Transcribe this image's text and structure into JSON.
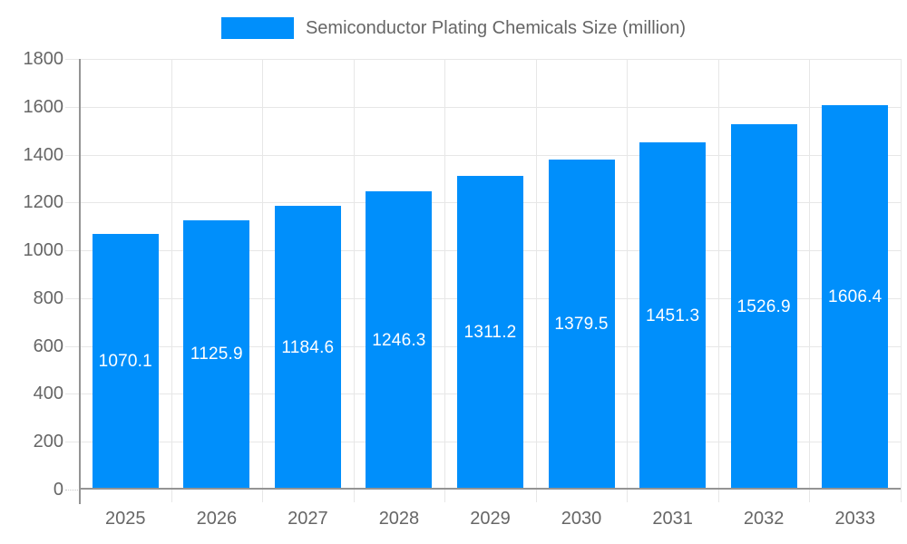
{
  "legend": {
    "label": "Semiconductor Plating Chemicals Size (million)",
    "swatch_color": "#008FFB"
  },
  "chart_data": {
    "type": "bar",
    "title": "Semiconductor Plating Chemicals Size (million)",
    "series_name": "Semiconductor Plating Chemicals Size (million)",
    "categories": [
      "2025",
      "2026",
      "2027",
      "2028",
      "2029",
      "2030",
      "2031",
      "2032",
      "2033"
    ],
    "values": [
      1070.1,
      1125.9,
      1184.6,
      1246.3,
      1311.2,
      1379.5,
      1451.3,
      1526.9,
      1606.4
    ],
    "data_labels": [
      "1070.1",
      "1125.9",
      "1184.6",
      "1246.3",
      "1311.2",
      "1379.5",
      "1451.3",
      "1526.9",
      "1606.4"
    ],
    "xlabel": "",
    "ylabel": "",
    "ylim": [
      0,
      1800
    ],
    "yticks": [
      0,
      200,
      400,
      600,
      800,
      1000,
      1200,
      1400,
      1600,
      1800
    ],
    "grid": true,
    "legend_position": "top",
    "bar_color": "#008FFB",
    "data_label_color": "#ffffff",
    "grid_color": "#e7e7e7",
    "axis_color": "#949494",
    "text_color": "#666666"
  }
}
